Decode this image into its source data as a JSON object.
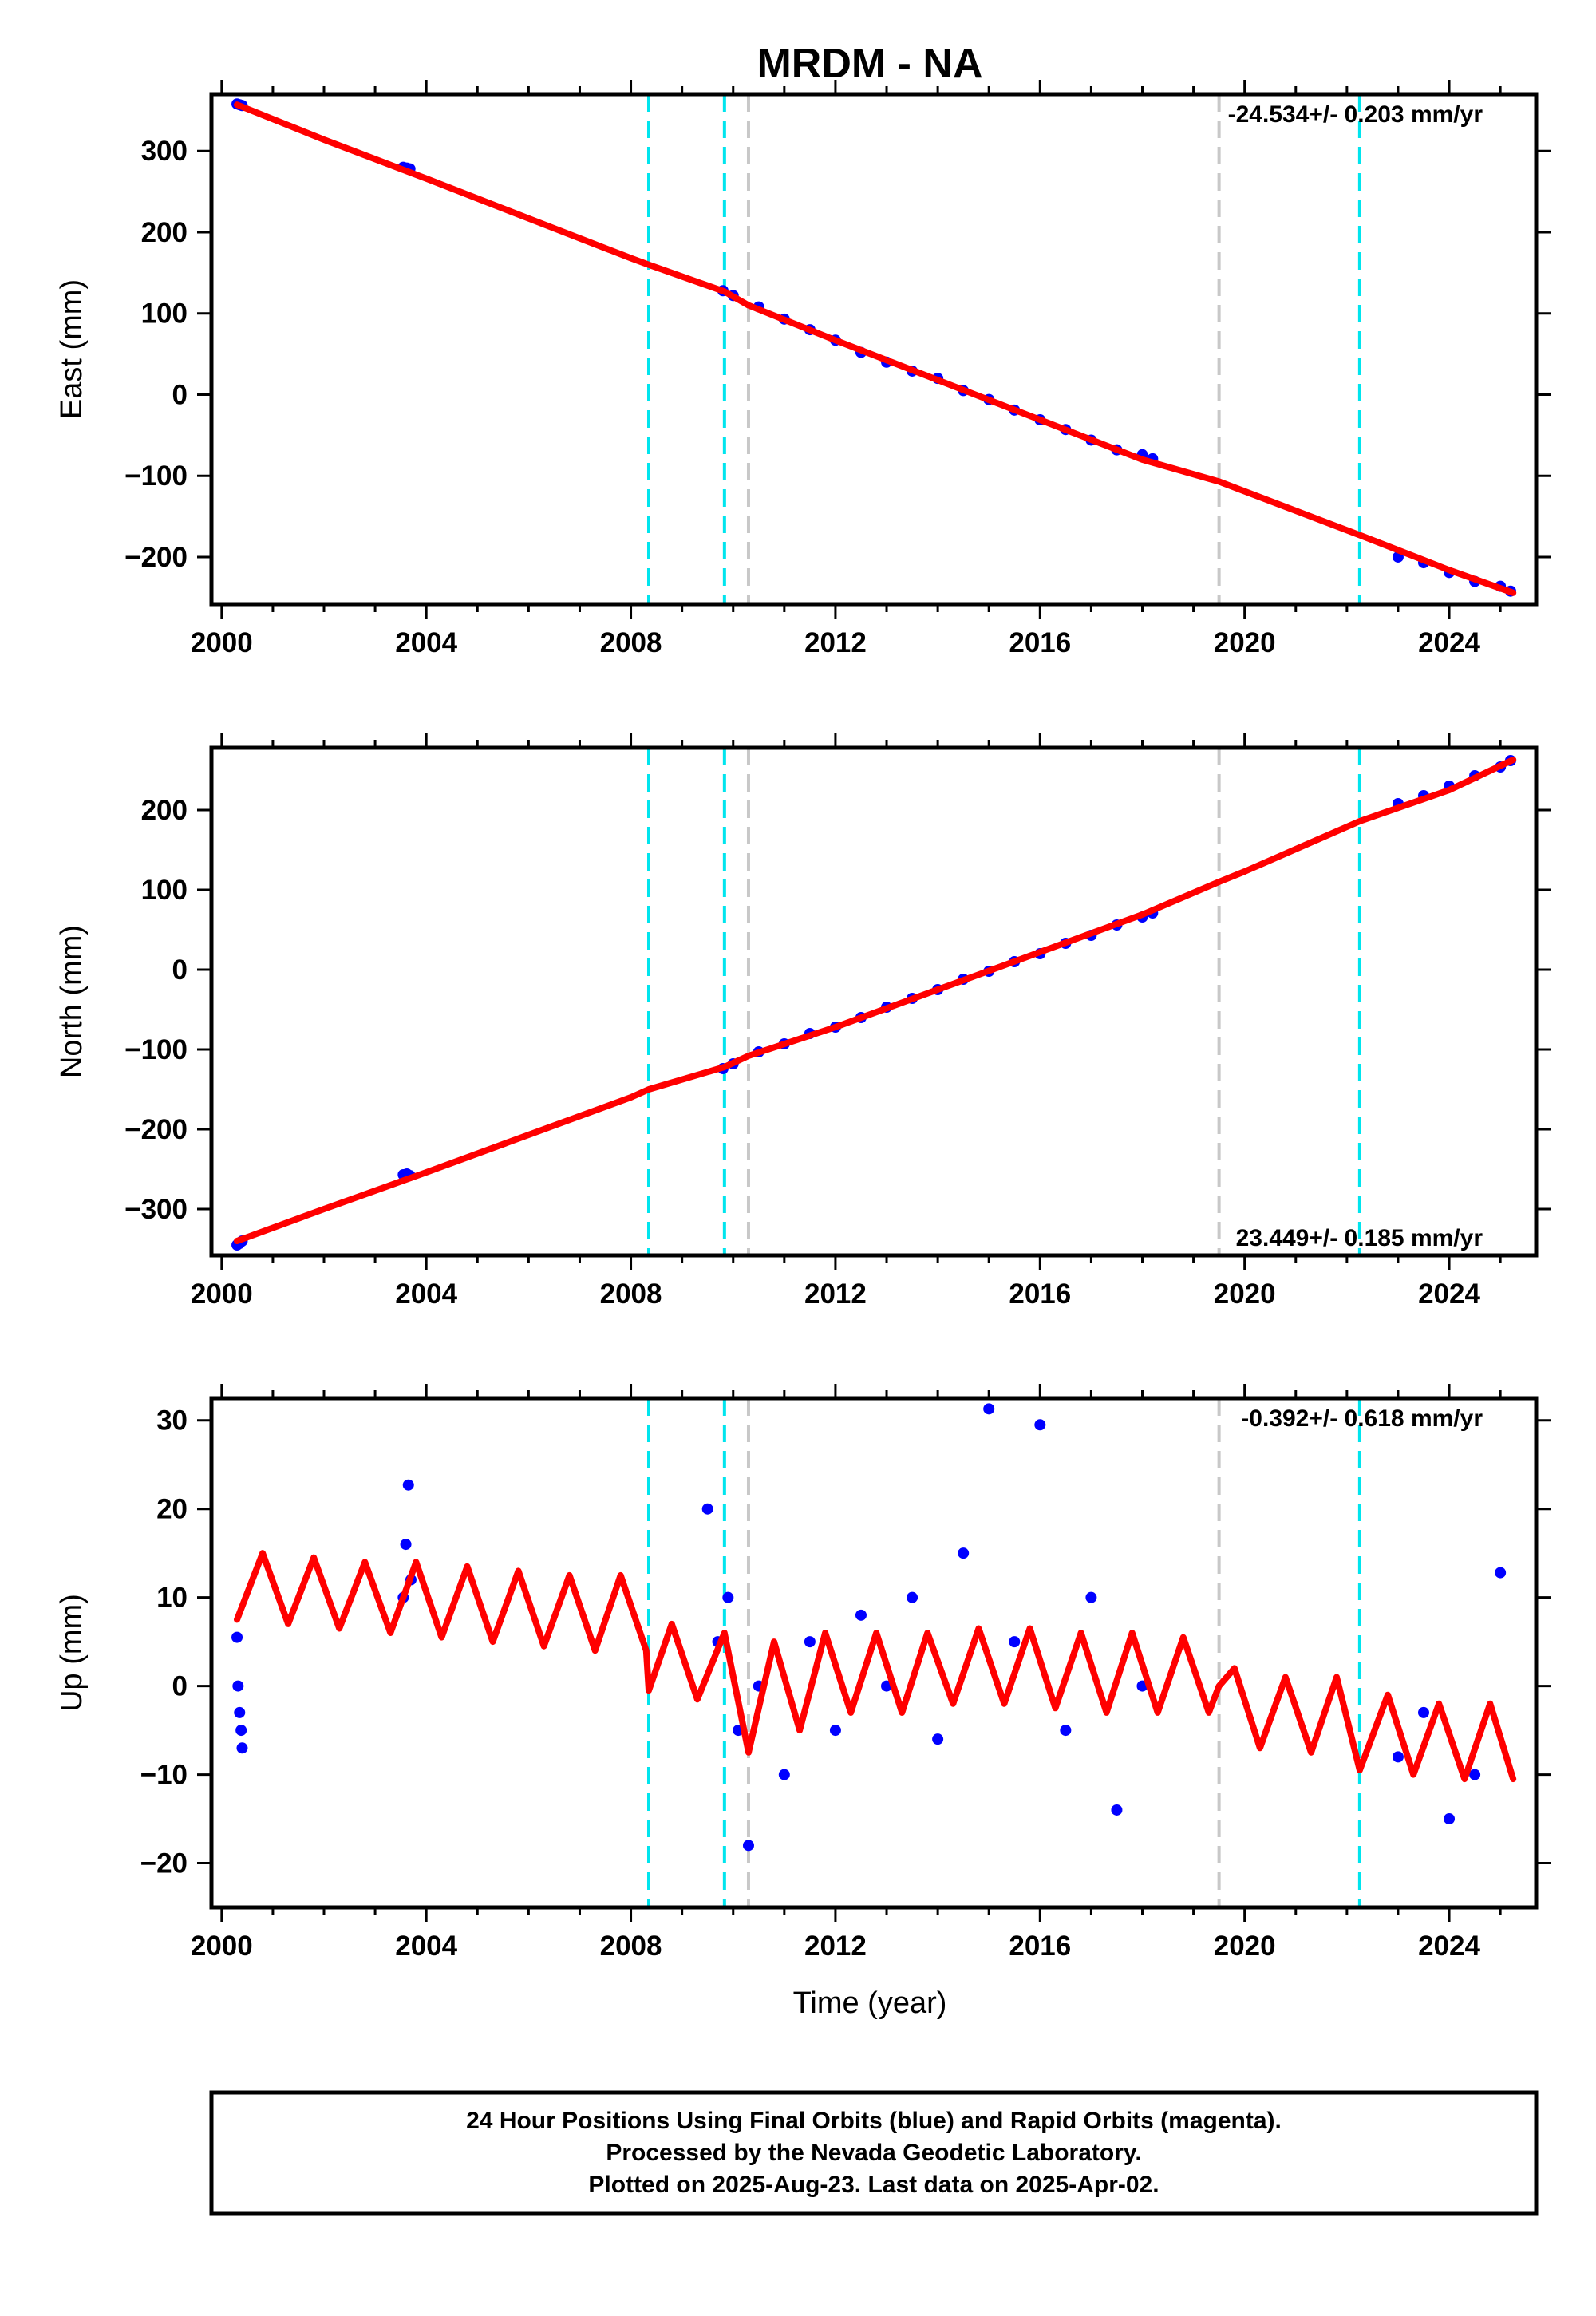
{
  "title": "MRDM - NA",
  "xlabel": "Time (year)",
  "caption": {
    "line1": "24 Hour Positions Using Final Orbits (blue) and Rapid Orbits (magenta).",
    "line2": "Processed by the Nevada Geodetic Laboratory.",
    "line3": "Plotted on 2025-Aug-23. Last data on 2025-Apr-02."
  },
  "colors": {
    "observations": "#0000ff",
    "model": "#ff0000",
    "equipment_change": "#00e5ee",
    "earthquake": "#c8c8c8"
  },
  "chart_data": [
    {
      "type": "scatter",
      "component": "east",
      "ylabel": "East (mm)",
      "rate": "-24.534+/- 0.203 mm/yr",
      "xlim": [
        1999.8,
        2025.7
      ],
      "ylim": [
        -258,
        370
      ],
      "x_ticks": [
        2000,
        2004,
        2008,
        2012,
        2016,
        2020,
        2024
      ],
      "y_ticks": [
        -200,
        -100,
        0,
        100,
        200,
        300
      ],
      "cyan_lines": [
        2008.35,
        2009.83,
        2022.25
      ],
      "gray_lines": [
        2010.3,
        2019.5
      ],
      "series": [
        {
          "name": "data",
          "x": [
            2000.3,
            2000.35,
            2000.4,
            2003.55,
            2003.62,
            2003.68,
            2009.8,
            2010.0,
            2010.5,
            2011.0,
            2011.5,
            2012.0,
            2012.5,
            2013.0,
            2013.5,
            2014.0,
            2014.5,
            2015.0,
            2015.5,
            2016.0,
            2016.5,
            2017.0,
            2017.5,
            2018.0,
            2018.2,
            2023.0,
            2023.5,
            2024.0,
            2024.5,
            2025.0,
            2025.2
          ],
          "y": [
            358,
            357,
            356,
            280,
            279,
            278,
            128,
            122,
            108,
            93,
            80,
            67,
            52,
            40,
            29,
            20,
            5,
            -6,
            -19,
            -31,
            -43,
            -56,
            -68,
            -74,
            -79,
            -200,
            -207,
            -219,
            -230,
            -236,
            -242
          ]
        },
        {
          "name": "model",
          "x": [
            2000.3,
            2002.0,
            2004.0,
            2006.0,
            2008.0,
            2008.35,
            2009.83,
            2010.3,
            2012.0,
            2014.0,
            2016.0,
            2018.0,
            2019.5,
            2020.0,
            2022.25,
            2024.0,
            2025.25
          ],
          "y": [
            357,
            314,
            266,
            217,
            168,
            160,
            127,
            110,
            67,
            18,
            -31,
            -80,
            -107,
            -119,
            -173,
            -216,
            -244
          ]
        }
      ]
    },
    {
      "type": "scatter",
      "component": "north",
      "ylabel": "North (mm)",
      "rate": "23.449+/- 0.185 mm/yr",
      "xlim": [
        1999.8,
        2025.7
      ],
      "ylim": [
        -358,
        278
      ],
      "x_ticks": [
        2000,
        2004,
        2008,
        2012,
        2016,
        2020,
        2024
      ],
      "y_ticks": [
        -300,
        -200,
        -100,
        0,
        100,
        200
      ],
      "cyan_lines": [
        2008.35,
        2009.83,
        2022.25
      ],
      "gray_lines": [
        2010.3,
        2019.5
      ],
      "series": [
        {
          "name": "data",
          "x": [
            2000.3,
            2000.35,
            2000.4,
            2003.55,
            2003.62,
            2003.68,
            2009.8,
            2010.0,
            2010.5,
            2011.0,
            2011.5,
            2012.0,
            2012.5,
            2013.0,
            2013.5,
            2014.0,
            2014.5,
            2015.0,
            2015.5,
            2016.0,
            2016.5,
            2017.0,
            2017.5,
            2018.0,
            2018.2,
            2023.0,
            2023.5,
            2024.0,
            2024.5,
            2025.0,
            2025.2
          ],
          "y": [
            -345,
            -343,
            -340,
            -257,
            -256,
            -258,
            -124,
            -118,
            -103,
            -93,
            -80,
            -72,
            -60,
            -47,
            -36,
            -25,
            -12,
            -2,
            10,
            20,
            33,
            43,
            56,
            66,
            71,
            208,
            218,
            230,
            243,
            254,
            262
          ]
        },
        {
          "name": "model",
          "x": [
            2000.3,
            2002.0,
            2004.0,
            2006.0,
            2008.0,
            2008.35,
            2009.83,
            2010.3,
            2012.0,
            2014.0,
            2016.0,
            2018.0,
            2019.5,
            2020.0,
            2022.25,
            2024.0,
            2025.25
          ],
          "y": [
            -340,
            -300,
            -254,
            -207,
            -160,
            -150,
            -122,
            -108,
            -72,
            -25,
            22,
            69,
            110,
            123,
            186,
            225,
            263
          ]
        }
      ]
    },
    {
      "type": "scatter",
      "component": "up",
      "ylabel": "Up (mm)",
      "rate": "-0.392+/- 0.618 mm/yr",
      "xlim": [
        1999.8,
        2025.7
      ],
      "ylim": [
        -25,
        32.5
      ],
      "x_ticks": [
        2000,
        2004,
        2008,
        2012,
        2016,
        2020,
        2024
      ],
      "y_ticks": [
        -20,
        -10,
        0,
        10,
        20,
        30
      ],
      "cyan_lines": [
        2008.35,
        2009.83,
        2022.25
      ],
      "gray_lines": [
        2010.3,
        2019.5
      ],
      "series": [
        {
          "name": "data",
          "x": [
            2000.3,
            2000.32,
            2000.35,
            2000.38,
            2000.4,
            2003.55,
            2003.6,
            2003.65,
            2003.7,
            2009.5,
            2009.7,
            2009.9,
            2010.1,
            2010.3,
            2010.5,
            2011.0,
            2011.5,
            2012.0,
            2012.5,
            2013.0,
            2013.5,
            2014.0,
            2014.5,
            2015.0,
            2015.5,
            2016.0,
            2016.5,
            2017.0,
            2017.5,
            2018.0,
            2023.0,
            2023.5,
            2024.0,
            2024.5,
            2025.0
          ],
          "y": [
            5.5,
            0,
            -3,
            -5,
            -7,
            10,
            16,
            22.7,
            12,
            20,
            5,
            10,
            -5,
            -18,
            0,
            -10,
            5,
            -5,
            8,
            0,
            10,
            -6,
            15,
            31.3,
            5,
            29.5,
            -5,
            10,
            -14,
            0,
            -8,
            -3,
            -15,
            -10,
            12.8
          ]
        },
        {
          "name": "model",
          "x": [
            2000.3,
            2000.8,
            2001.3,
            2001.8,
            2002.3,
            2002.8,
            2003.3,
            2003.8,
            2004.3,
            2004.8,
            2005.3,
            2005.8,
            2006.3,
            2006.8,
            2007.3,
            2007.8,
            2008.3,
            2008.35,
            2008.8,
            2009.3,
            2009.83,
            2010.3,
            2010.8,
            2011.3,
            2011.8,
            2012.3,
            2012.8,
            2013.3,
            2013.8,
            2014.3,
            2014.8,
            2015.3,
            2015.8,
            2016.3,
            2016.8,
            2017.3,
            2017.8,
            2018.3,
            2018.8,
            2019.3,
            2019.5,
            2019.8,
            2020.3,
            2020.8,
            2021.3,
            2021.8,
            2022.25,
            2022.8,
            2023.3,
            2023.8,
            2024.3,
            2024.8,
            2025.25
          ],
          "y": [
            7.5,
            15,
            7,
            14.5,
            6.5,
            14,
            6,
            14,
            5.5,
            13.5,
            5,
            13,
            4.5,
            12.5,
            4,
            12.5,
            4,
            -0.5,
            7,
            -1.5,
            6,
            -7.5,
            5,
            -5,
            6,
            -3,
            6,
            -3,
            6,
            -2,
            6.5,
            -2,
            6.5,
            -2.5,
            6,
            -3,
            6,
            -3,
            5.5,
            -3,
            0,
            2,
            -7,
            1,
            -7.5,
            1,
            -9.5,
            -1,
            -10,
            -2,
            -10.5,
            -2,
            -10.5
          ]
        }
      ]
    }
  ]
}
